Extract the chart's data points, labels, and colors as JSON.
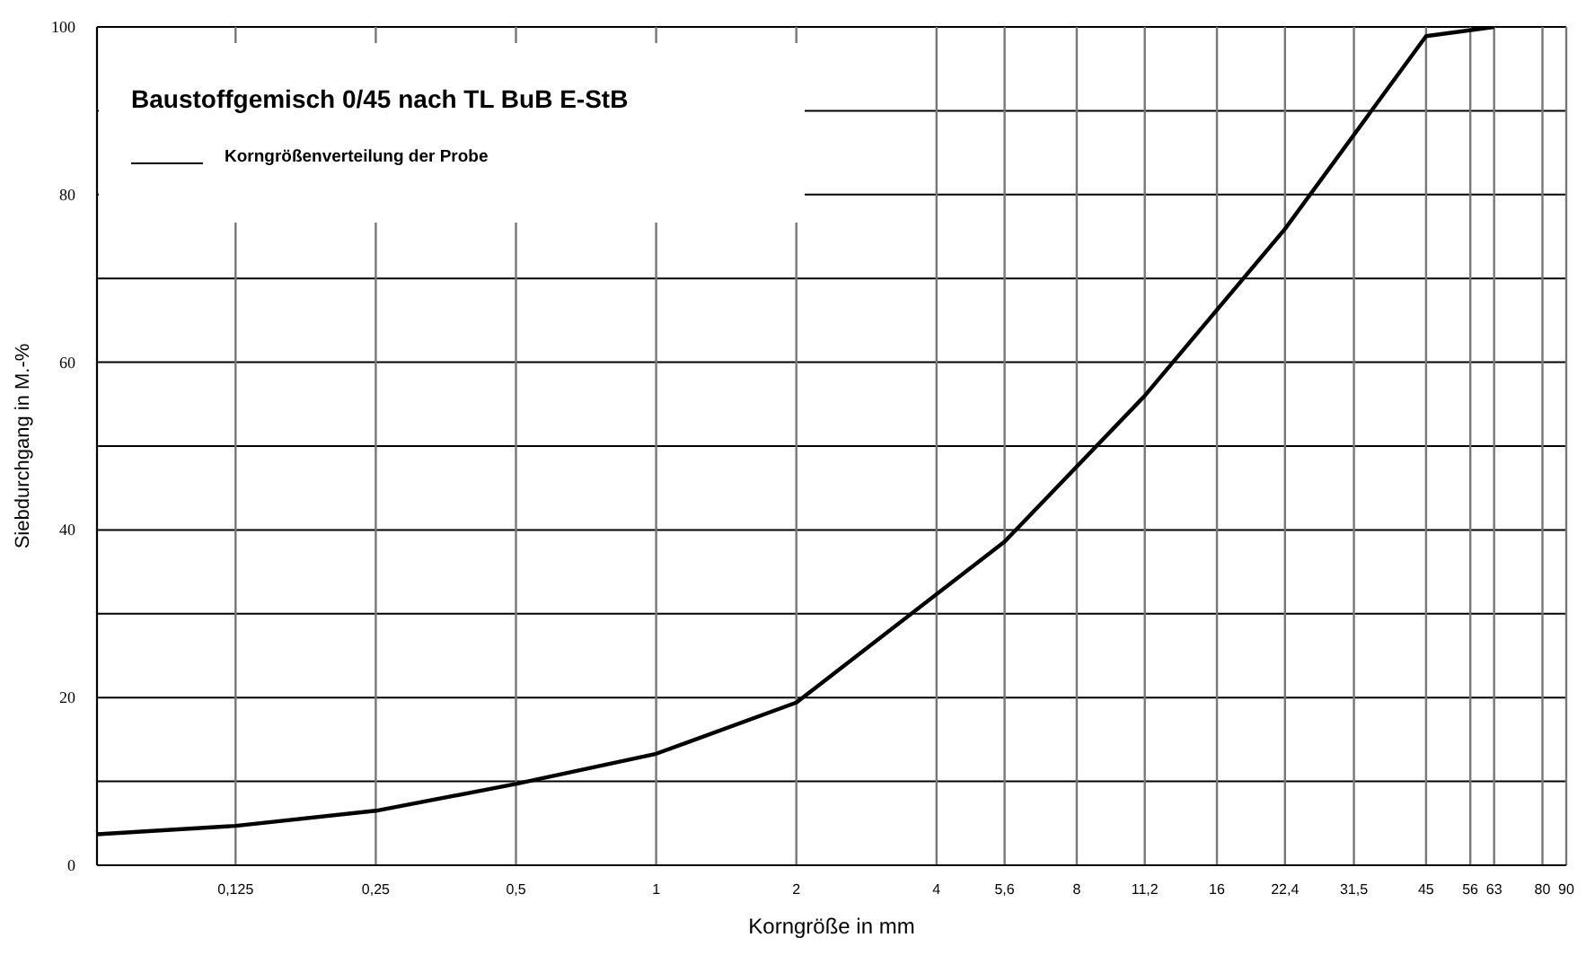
{
  "chart_data": {
    "type": "line",
    "title": "Baustoffgemisch 0/45 nach TL BuB E-StB",
    "xlabel": "Korngröße in mm",
    "ylabel": "Siebdurchgang in M.-%",
    "x": [
      0.063,
      0.125,
      0.25,
      0.5,
      1,
      2,
      5.6,
      11.2,
      22.4,
      45,
      63
    ],
    "series": [
      {
        "name": "Korngrößenverteilung der Probe",
        "color": "#000000",
        "values": [
          3.7,
          4.7,
          6.5,
          9.7,
          13.3,
          19.4,
          38.6,
          56.0,
          75.9,
          98.9,
          100
        ]
      }
    ],
    "log": "x",
    "xlim": [
      0.063,
      90
    ],
    "xticks": [
      {
        "value": 0.125,
        "label": "0,125"
      },
      {
        "value": 0.25,
        "label": "0,25"
      },
      {
        "value": 0.5,
        "label": "0,5"
      },
      1,
      2,
      4,
      {
        "value": 5.6,
        "label": "5,6"
      },
      8,
      {
        "value": 11.2,
        "label": "11,2"
      },
      16,
      {
        "value": 22.4,
        "label": "22,4"
      },
      {
        "value": 31.5,
        "label": "31,5"
      },
      45,
      56,
      63,
      80,
      90
    ],
    "ylim": [
      0,
      100
    ],
    "yticks": [
      0,
      {
        "value": 10,
        "label": null
      },
      20,
      {
        "value": 30,
        "label": null
      },
      40,
      {
        "value": 50,
        "label": null
      },
      60,
      {
        "value": 70,
        "label": null
      },
      80,
      {
        "value": 90,
        "label": null
      },
      100
    ],
    "grid": true,
    "legend": "top left",
    "marker": "none",
    "line_style": "solid"
  }
}
